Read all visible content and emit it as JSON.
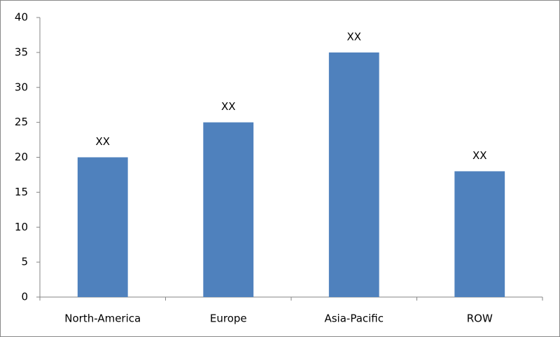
{
  "chart_data": {
    "type": "bar",
    "categories": [
      "North-America",
      "Europe",
      "Asia-Pacific",
      "ROW"
    ],
    "values": [
      20,
      25,
      35,
      18
    ],
    "value_labels": [
      "XX",
      "XX",
      "XX",
      "XX"
    ],
    "color": "#4f81bd",
    "ylim": [
      0,
      40
    ],
    "yticks": [
      0,
      5,
      10,
      15,
      20,
      25,
      30,
      35,
      40
    ],
    "grid": false
  }
}
